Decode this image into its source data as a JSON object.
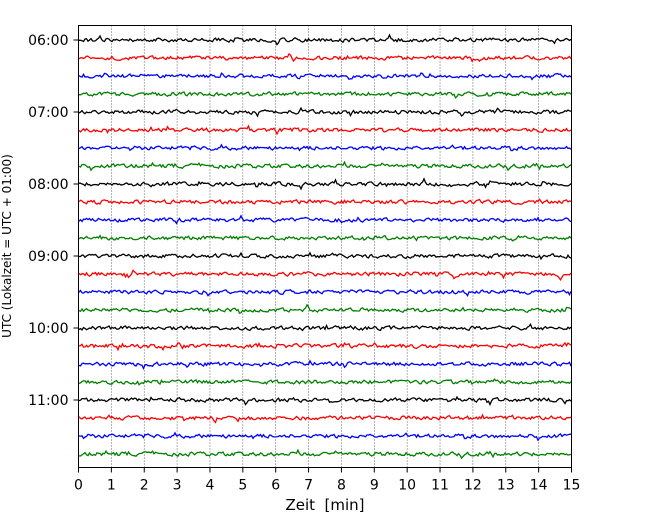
{
  "chart_data": {
    "type": "line",
    "title": "",
    "xlabel": "Zeit  [min]",
    "ylabel": "UTC (Lokalzeit = UTC + 01:00)",
    "xlim": [
      0,
      15
    ],
    "x_ticks": [
      "0",
      "1",
      "2",
      "3",
      "4",
      "5",
      "6",
      "7",
      "8",
      "9",
      "10",
      "11",
      "12",
      "13",
      "14",
      "15"
    ],
    "y_ticks": [
      "06:00",
      "07:00",
      "08:00",
      "09:00",
      "10:00",
      "11:00"
    ],
    "trace_interval_min": 15,
    "trace_start": "06:00",
    "trace_colors": [
      "#000000",
      "#ff0000",
      "#0000ff",
      "#008000"
    ],
    "traces": [
      "06:00",
      "06:15",
      "06:30",
      "06:45",
      "07:00",
      "07:15",
      "07:30",
      "07:45",
      "08:00",
      "08:15",
      "08:30",
      "08:45",
      "09:00",
      "09:15",
      "09:30",
      "09:45",
      "10:00",
      "10:15",
      "10:30",
      "10:45",
      "11:00",
      "11:15",
      "11:30",
      "11:45"
    ],
    "grid": {
      "x": true,
      "y": false,
      "style": "dotted"
    },
    "legend": "none"
  }
}
